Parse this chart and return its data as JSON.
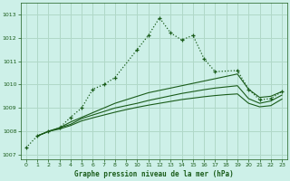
{
  "title": "Graphe pression niveau de la mer (hPa)",
  "bg_color": "#cdf0e8",
  "grid_color": "#b0d8c8",
  "line_color": "#1a5c1a",
  "xlim": [
    -0.5,
    23.5
  ],
  "ylim": [
    1006.8,
    1013.5
  ],
  "yticks": [
    1007,
    1008,
    1009,
    1010,
    1011,
    1012,
    1013
  ],
  "xticks": [
    0,
    1,
    2,
    3,
    4,
    5,
    6,
    7,
    8,
    9,
    10,
    11,
    12,
    13,
    14,
    15,
    16,
    17,
    18,
    19,
    20,
    21,
    22,
    23
  ],
  "series1_x": [
    0,
    1,
    2,
    3,
    4,
    5,
    6,
    7,
    8,
    10,
    11,
    12,
    13,
    14,
    15,
    16,
    17,
    19,
    20,
    21,
    22,
    23
  ],
  "series1_y": [
    1007.3,
    1007.8,
    1008.0,
    1008.15,
    1008.6,
    1009.0,
    1009.8,
    1010.0,
    1010.3,
    1011.5,
    1012.1,
    1012.85,
    1012.2,
    1011.9,
    1012.1,
    1011.1,
    1010.55,
    1010.6,
    1009.8,
    1009.35,
    1009.4,
    1009.7
  ],
  "series2_x": [
    1,
    2,
    3,
    4,
    5,
    6,
    7,
    8,
    9,
    10,
    11,
    12,
    13,
    14,
    15,
    16,
    17,
    18,
    19,
    20,
    21,
    22,
    23
  ],
  "series2_y": [
    1007.8,
    1008.0,
    1008.15,
    1008.4,
    1008.6,
    1008.8,
    1009.0,
    1009.2,
    1009.35,
    1009.5,
    1009.65,
    1009.75,
    1009.85,
    1009.95,
    1010.05,
    1010.15,
    1010.25,
    1010.35,
    1010.45,
    1009.8,
    1009.45,
    1009.5,
    1009.7
  ],
  "series3_x": [
    1,
    2,
    3,
    4,
    5,
    6,
    7,
    8,
    9,
    10,
    11,
    12,
    13,
    14,
    15,
    16,
    17,
    18,
    19,
    20,
    21,
    22,
    23
  ],
  "series3_y": [
    1007.8,
    1008.0,
    1008.15,
    1008.3,
    1008.55,
    1008.7,
    1008.85,
    1009.0,
    1009.1,
    1009.2,
    1009.32,
    1009.42,
    1009.52,
    1009.62,
    1009.7,
    1009.78,
    1009.85,
    1009.9,
    1009.95,
    1009.4,
    1009.2,
    1009.3,
    1009.55
  ],
  "series4_x": [
    1,
    2,
    3,
    4,
    5,
    6,
    7,
    8,
    9,
    10,
    11,
    12,
    13,
    14,
    15,
    16,
    17,
    18,
    19,
    20,
    21,
    22,
    23
  ],
  "series4_y": [
    1007.8,
    1008.0,
    1008.1,
    1008.25,
    1008.45,
    1008.58,
    1008.7,
    1008.82,
    1008.93,
    1009.03,
    1009.12,
    1009.2,
    1009.28,
    1009.36,
    1009.42,
    1009.48,
    1009.53,
    1009.57,
    1009.6,
    1009.2,
    1009.05,
    1009.1,
    1009.38
  ]
}
